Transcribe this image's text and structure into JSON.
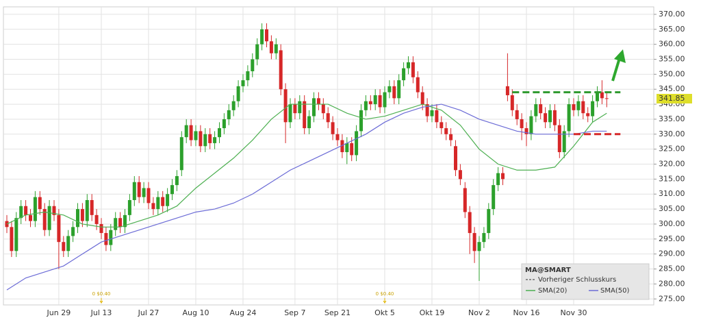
{
  "chart_data": {
    "type": "candlestick",
    "categories": [
      null,
      null,
      null,
      null,
      null,
      null,
      null,
      null,
      null,
      null,
      null,
      "Jun 29",
      null,
      null,
      null,
      null,
      null,
      null,
      null,
      null,
      "Jul 13",
      null,
      null,
      null,
      null,
      null,
      null,
      null,
      null,
      null,
      "Jul 27",
      null,
      null,
      null,
      null,
      null,
      null,
      null,
      null,
      null,
      "Aug 10",
      null,
      null,
      null,
      null,
      null,
      null,
      null,
      null,
      null,
      "Aug 24",
      null,
      null,
      null,
      null,
      null,
      null,
      null,
      null,
      null,
      null,
      "Sep 7",
      null,
      null,
      null,
      null,
      null,
      null,
      null,
      null,
      "Sep 21",
      null,
      null,
      null,
      null,
      null,
      null,
      null,
      null,
      null,
      "Okt 5",
      null,
      null,
      null,
      null,
      null,
      null,
      null,
      null,
      null,
      "Okt 19",
      null,
      null,
      null,
      null,
      null,
      null,
      null,
      null,
      null,
      "Nov 2",
      null,
      null,
      null,
      null,
      null,
      null,
      null,
      null,
      null,
      "Nov 16",
      null,
      null,
      null,
      null,
      null,
      null,
      null,
      null,
      null,
      "Nov 30",
      null,
      null,
      null,
      null,
      null,
      null,
      null
    ],
    "open": [
      301,
      299,
      291,
      302,
      306,
      303,
      301,
      309,
      305,
      298,
      306,
      303,
      294,
      291,
      296,
      299,
      305,
      301,
      308,
      303,
      300,
      297,
      293,
      298,
      302,
      299,
      303,
      308,
      314,
      309,
      312,
      307,
      305,
      309,
      306,
      310,
      313,
      318,
      329,
      333,
      328,
      331,
      326,
      330,
      327,
      329,
      332,
      335,
      338,
      341,
      346,
      348,
      351,
      355,
      360,
      365,
      361,
      357,
      358,
      345,
      334,
      340,
      337,
      341,
      332,
      336,
      342,
      340,
      337,
      334,
      330,
      328,
      324,
      327,
      323,
      331,
      338,
      341,
      340,
      343,
      339,
      344,
      346,
      342,
      348,
      352,
      354,
      349,
      344,
      340,
      336,
      338,
      334,
      332,
      330,
      326,
      318,
      312,
      304,
      297,
      291,
      294,
      297,
      305,
      313,
      317,
      346,
      343,
      338,
      335,
      332,
      330,
      336,
      340,
      337,
      334,
      338,
      333,
      324,
      331,
      340,
      338,
      341,
      337,
      336,
      341,
      344,
      342
    ],
    "high": [
      303,
      301,
      304,
      308,
      308,
      305,
      311,
      311,
      307,
      308,
      308,
      305,
      296,
      298,
      301,
      307,
      307,
      310,
      310,
      305,
      302,
      299,
      300,
      304,
      304,
      305,
      310,
      316,
      316,
      314,
      314,
      309,
      311,
      311,
      312,
      315,
      318,
      331,
      335,
      335,
      333,
      333,
      332,
      332,
      331,
      334,
      337,
      340,
      343,
      348,
      350,
      353,
      357,
      362,
      367,
      367,
      363,
      362,
      360,
      347,
      342,
      342,
      343,
      343,
      338,
      344,
      344,
      342,
      339,
      336,
      332,
      330,
      329,
      329,
      333,
      340,
      343,
      343,
      345,
      345,
      346,
      348,
      348,
      350,
      354,
      356,
      356,
      351,
      346,
      342,
      340,
      340,
      336,
      334,
      332,
      328,
      320,
      314,
      306,
      299,
      296,
      299,
      307,
      315,
      319,
      319,
      357,
      345,
      340,
      337,
      334,
      338,
      342,
      342,
      339,
      340,
      340,
      335,
      333,
      342,
      342,
      343,
      343,
      339,
      343,
      346,
      348,
      344
    ],
    "low": [
      297,
      289,
      289,
      300,
      301,
      299,
      299,
      303,
      296,
      296,
      301,
      285,
      289,
      289,
      294,
      297,
      299,
      299,
      301,
      298,
      295,
      291,
      291,
      296,
      297,
      297,
      301,
      306,
      307,
      307,
      305,
      303,
      303,
      304,
      304,
      308,
      311,
      316,
      327,
      326,
      326,
      324,
      324,
      325,
      325,
      327,
      330,
      333,
      336,
      339,
      344,
      346,
      349,
      353,
      358,
      359,
      355,
      355,
      343,
      327,
      332,
      335,
      335,
      330,
      330,
      334,
      338,
      335,
      332,
      328,
      326,
      322,
      320,
      321,
      321,
      329,
      336,
      338,
      338,
      337,
      337,
      342,
      340,
      340,
      346,
      350,
      347,
      342,
      338,
      334,
      334,
      332,
      330,
      328,
      326,
      316,
      313,
      302,
      290,
      287,
      281,
      292,
      295,
      303,
      311,
      313,
      341,
      336,
      333,
      328,
      326,
      328,
      334,
      335,
      332,
      332,
      331,
      322,
      322,
      329,
      336,
      336,
      335,
      334,
      334,
      339,
      340,
      339
    ],
    "close": [
      299,
      291,
      302,
      306,
      303,
      301,
      309,
      305,
      298,
      306,
      303,
      294,
      291,
      296,
      299,
      305,
      301,
      308,
      303,
      300,
      297,
      293,
      298,
      302,
      299,
      303,
      308,
      314,
      309,
      312,
      307,
      305,
      309,
      306,
      310,
      313,
      316,
      329,
      333,
      328,
      331,
      326,
      330,
      327,
      329,
      332,
      335,
      338,
      341,
      346,
      348,
      351,
      355,
      360,
      365,
      361,
      357,
      360,
      345,
      334,
      340,
      337,
      341,
      332,
      336,
      342,
      340,
      337,
      334,
      330,
      328,
      324,
      327,
      323,
      331,
      338,
      341,
      340,
      343,
      339,
      344,
      346,
      342,
      348,
      352,
      354,
      349,
      344,
      340,
      336,
      338,
      334,
      332,
      330,
      328,
      318,
      315,
      304,
      297,
      291,
      294,
      297,
      305,
      313,
      317,
      315,
      343,
      338,
      335,
      332,
      330,
      336,
      340,
      337,
      334,
      338,
      333,
      324,
      331,
      340,
      338,
      341,
      337,
      336,
      341,
      344,
      342,
      341.85
    ],
    "up_color": "#2ca02c",
    "down_color": "#d62728",
    "series": [
      {
        "name": "SMA(20)",
        "color": "#4caf50",
        "x": [
          0,
          4,
          8,
          12,
          16,
          20,
          24,
          28,
          32,
          36,
          40,
          44,
          48,
          52,
          56,
          60,
          64,
          68,
          72,
          76,
          80,
          84,
          88,
          92,
          96,
          100,
          104,
          108,
          112,
          116,
          120,
          124,
          127
        ],
        "values": [
          300,
          303,
          304,
          303,
          300,
          299,
          299,
          301,
          303,
          306,
          312,
          317,
          322,
          328,
          335,
          340,
          340,
          340,
          337,
          335,
          336,
          338,
          340,
          338,
          333,
          325,
          320,
          318,
          318,
          319,
          326,
          334,
          337
        ]
      },
      {
        "name": "SMA(50)",
        "color": "#6b6bd6",
        "x": [
          0,
          4,
          8,
          12,
          16,
          20,
          24,
          28,
          32,
          36,
          40,
          44,
          48,
          52,
          56,
          60,
          64,
          68,
          72,
          76,
          80,
          84,
          88,
          92,
          96,
          100,
          104,
          108,
          112,
          116,
          120,
          124,
          127
        ],
        "values": [
          278,
          282,
          284,
          286,
          290,
          294,
          296,
          298,
          300,
          302,
          304,
          305,
          307,
          310,
          314,
          318,
          321,
          324,
          327,
          330,
          334,
          337,
          339,
          340,
          338,
          335,
          333,
          331,
          330,
          330,
          330,
          331,
          331
        ]
      }
    ],
    "levels": [
      {
        "value": 344,
        "color": "#2e9a2e",
        "start": 107,
        "end": 127
      },
      {
        "value": 330,
        "color": "#d62728",
        "start": 120,
        "end": 127
      }
    ],
    "annotations": [
      {
        "text": "0 $0.40",
        "x": 20
      },
      {
        "text": "0 $0.40",
        "x": 80
      }
    ],
    "legend_title": "MA@SMART",
    "legend_prev_close": "Vorheriger Schlusskurs",
    "ylim": [
      273,
      372.5
    ],
    "yticks": [
      {
        "value": 275,
        "label": "275.00"
      },
      {
        "value": 280,
        "label": "280.00"
      },
      {
        "value": 285,
        "label": "285.00"
      },
      {
        "value": 290,
        "label": "290.00"
      },
      {
        "value": 295,
        "label": "295.00"
      },
      {
        "value": 300,
        "label": "300.00"
      },
      {
        "value": 305,
        "label": "305.00"
      },
      {
        "value": 310,
        "label": "310.00"
      },
      {
        "value": 315,
        "label": "315.00"
      },
      {
        "value": 320,
        "label": "320.00"
      },
      {
        "value": 325,
        "label": "325.00"
      },
      {
        "value": 330,
        "label": "330.00"
      },
      {
        "value": 335,
        "label": "335.00"
      },
      {
        "value": 340,
        "label": "340.00"
      },
      {
        "value": 345,
        "label": "345.00"
      },
      {
        "value": 350,
        "label": "350.00"
      },
      {
        "value": 355,
        "label": "355.00"
      },
      {
        "value": 360,
        "label": "360.00"
      },
      {
        "value": 365,
        "label": "365.00"
      },
      {
        "value": 370,
        "label": "370.00"
      }
    ],
    "grid": true
  }
}
